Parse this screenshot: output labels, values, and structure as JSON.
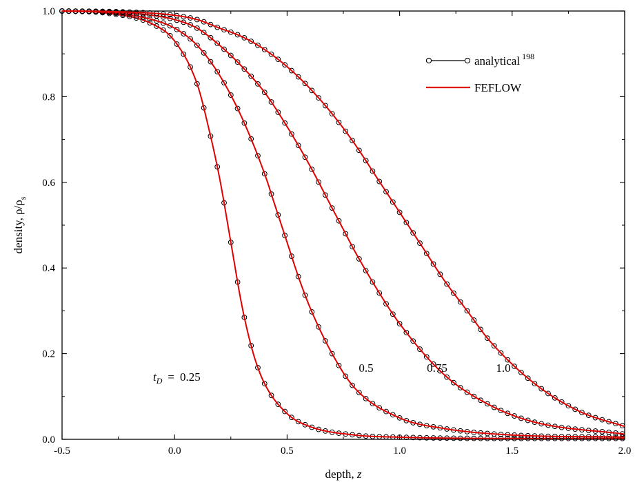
{
  "chart_data": {
    "type": "line",
    "title": "",
    "xlabel": "depth, ",
    "xlabel_italic": "z",
    "ylabel": "density, ρ/ρ",
    "ylabel_sub": "s",
    "xlim": [
      -0.5,
      2.0
    ],
    "ylim": [
      0.0,
      1.0
    ],
    "x_ticks": [
      "-0.5",
      "0.0",
      "0.5",
      "1.0",
      "1.5",
      "2.0"
    ],
    "y_ticks": [
      "0.0",
      "0.2",
      "0.4",
      "0.6",
      "0.8",
      "1.0"
    ],
    "grid": false,
    "legend_position": "top-right",
    "legend": [
      {
        "name": "analytical",
        "superscript": "198",
        "style": "black line with open circle markers"
      },
      {
        "name": "FEFLOW",
        "style": "red line"
      }
    ],
    "series_colors": {
      "analytical": "#000000",
      "FEFLOW": "#e00000"
    },
    "curves": [
      {
        "label": "0.25",
        "prefix": "t",
        "prefix_sub": "D",
        "prefix_eq": "=",
        "x": [
          -0.5,
          -0.3,
          -0.1,
          0.0,
          0.1,
          0.15,
          0.2,
          0.25,
          0.3,
          0.35,
          0.4,
          0.5,
          0.6,
          0.8,
          1.0,
          1.5,
          2.0
        ],
        "y": [
          1.0,
          0.995,
          0.97,
          0.93,
          0.83,
          0.73,
          0.61,
          0.46,
          0.31,
          0.2,
          0.13,
          0.06,
          0.03,
          0.01,
          0.005,
          0.002,
          0.002
        ]
      },
      {
        "label": "0.5",
        "x": [
          -0.5,
          -0.3,
          -0.1,
          0.0,
          0.1,
          0.2,
          0.3,
          0.4,
          0.45,
          0.5,
          0.55,
          0.6,
          0.7,
          0.8,
          1.0,
          1.2,
          1.5,
          2.0
        ],
        "y": [
          1.0,
          0.997,
          0.98,
          0.96,
          0.92,
          0.85,
          0.75,
          0.62,
          0.54,
          0.46,
          0.38,
          0.31,
          0.2,
          0.12,
          0.05,
          0.025,
          0.01,
          0.005
        ]
      },
      {
        "label": "0.75",
        "x": [
          -0.5,
          -0.3,
          -0.1,
          0.0,
          0.1,
          0.2,
          0.3,
          0.4,
          0.5,
          0.6,
          0.7,
          0.75,
          0.8,
          0.9,
          1.0,
          1.2,
          1.4,
          1.6,
          2.0
        ],
        "y": [
          1.0,
          0.998,
          0.99,
          0.98,
          0.96,
          0.92,
          0.87,
          0.81,
          0.73,
          0.64,
          0.54,
          0.49,
          0.44,
          0.35,
          0.27,
          0.15,
          0.08,
          0.04,
          0.012
        ]
      },
      {
        "label": "1.0",
        "x": [
          -0.5,
          -0.3,
          -0.1,
          0.0,
          0.1,
          0.2,
          0.3,
          0.4,
          0.5,
          0.6,
          0.7,
          0.8,
          0.9,
          1.0,
          1.1,
          1.2,
          1.3,
          1.4,
          1.6,
          1.8,
          2.0
        ],
        "y": [
          1.0,
          0.999,
          0.995,
          0.99,
          0.98,
          0.96,
          0.94,
          0.91,
          0.87,
          0.82,
          0.76,
          0.69,
          0.61,
          0.53,
          0.45,
          0.37,
          0.3,
          0.23,
          0.13,
          0.065,
          0.03
        ]
      }
    ]
  }
}
